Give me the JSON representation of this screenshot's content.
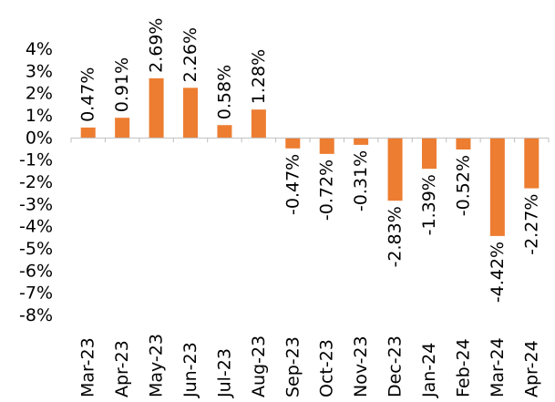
{
  "chart_data": {
    "type": "bar",
    "title": "",
    "xlabel": "",
    "ylabel": "",
    "categories": [
      "Mar-23",
      "Apr-23",
      "May-23",
      "Jun-23",
      "Jul-23",
      "Aug-23",
      "Sep-23",
      "Oct-23",
      "Nov-23",
      "Dec-23",
      "Jan-24",
      "Feb-24",
      "Mar-24",
      "Apr-24"
    ],
    "values": [
      0.47,
      0.91,
      2.69,
      2.26,
      0.58,
      1.28,
      -0.47,
      -0.72,
      -0.31,
      -2.83,
      -1.39,
      -0.52,
      -4.42,
      -2.27
    ],
    "data_labels": [
      "0.47%",
      "0.91%",
      "2.69%",
      "2.26%",
      "0.58%",
      "1.28%",
      "-0.47%",
      "-0.72%",
      "-0.31%",
      "-2.83%",
      "-1.39%",
      "-0.52%",
      "-4.42%",
      "-2.27%"
    ],
    "ylim": [
      -8,
      4
    ],
    "yticks": [
      4,
      3,
      2,
      1,
      0,
      -1,
      -2,
      -3,
      -4,
      -5,
      -6,
      -7,
      -8
    ],
    "ytick_labels": [
      "4%",
      "3%",
      "2%",
      "1%",
      "0%",
      "-1%",
      "-2%",
      "-3%",
      "-4%",
      "-5%",
      "-6%",
      "-7%",
      "-8%"
    ],
    "grid": false,
    "legend": "none",
    "bar_color": "#ED7D31",
    "axis_color": "#BFBFBF"
  }
}
